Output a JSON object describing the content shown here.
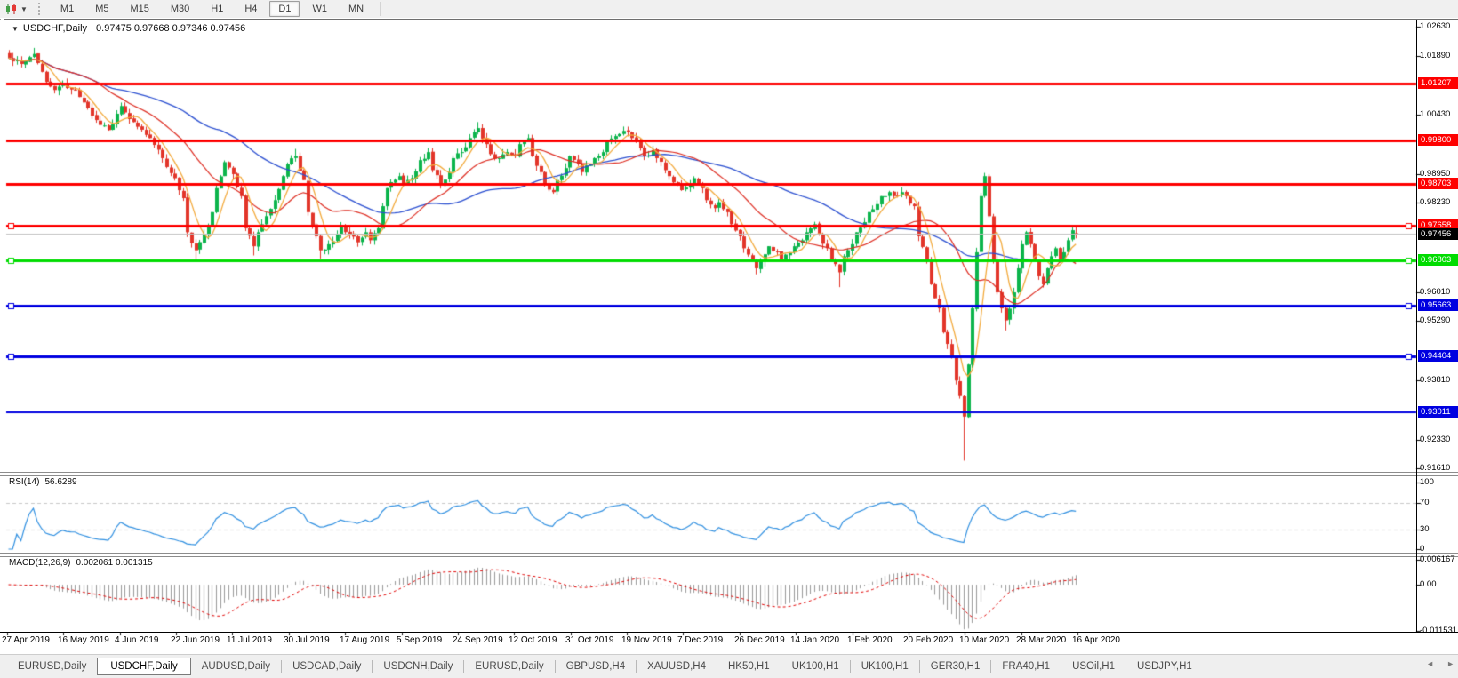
{
  "toolbar": {
    "chart_icon": "candlestick-chart-icon",
    "timeframes": [
      {
        "label": "M1",
        "active": false
      },
      {
        "label": "M5",
        "active": false
      },
      {
        "label": "M15",
        "active": false
      },
      {
        "label": "M30",
        "active": false
      },
      {
        "label": "H1",
        "active": false
      },
      {
        "label": "H4",
        "active": false
      },
      {
        "label": "D1",
        "active": true
      },
      {
        "label": "W1",
        "active": false
      },
      {
        "label": "MN",
        "active": false
      }
    ]
  },
  "chart": {
    "title_symbol": "USDCHF,Daily",
    "title_quote": "0.97475 0.97668 0.97346 0.97456"
  },
  "rsi": {
    "label": "RSI(14)",
    "value": "56.6289",
    "axis": [
      "100",
      "70",
      "30",
      "0"
    ],
    "levels": [
      70,
      30
    ]
  },
  "macd": {
    "label": "MACD(12,26,9)",
    "values": "0.002061 0.001315",
    "axis": [
      "0.006167",
      "0.00",
      "-0.011531"
    ]
  },
  "tabs": [
    {
      "label": "EURUSD,Daily",
      "active": false
    },
    {
      "label": "USDCHF,Daily",
      "active": true
    },
    {
      "label": "AUDUSD,Daily",
      "active": false
    },
    {
      "label": "USDCAD,Daily",
      "active": false
    },
    {
      "label": "USDCNH,Daily",
      "active": false
    },
    {
      "label": "EURUSD,Daily",
      "active": false
    },
    {
      "label": "GBPUSD,H4",
      "active": false
    },
    {
      "label": "XAUUSD,H4",
      "active": false
    },
    {
      "label": "HK50,H1",
      "active": false
    },
    {
      "label": "UK100,H1",
      "active": false
    },
    {
      "label": "UK100,H1",
      "active": false
    },
    {
      "label": "GER30,H1",
      "active": false
    },
    {
      "label": "FRA40,H1",
      "active": false
    },
    {
      "label": "USOil,H1",
      "active": false
    },
    {
      "label": "USDJPY,H1",
      "active": false
    }
  ],
  "tab_arrows": {
    "left": "◄",
    "right": "►"
  },
  "colors": {
    "bull": "#0cb44c",
    "bear": "#e2352a",
    "ma_fast": "#f2a93b",
    "ma_mid": "#dd2b20",
    "ma_slow": "#2b4fd0",
    "sr_red": "#fe0000",
    "sr_green": "#00dc00",
    "sr_blue": "#0000e0",
    "current_line": "#c0c0c0",
    "current_tag_bg": "#000000",
    "rsi_line": "#2f8fe0",
    "rsi_level": "#c8c8c8",
    "macd_hist": "#9a9a9a",
    "macd_signal": "#e00000"
  },
  "chart_data": {
    "type": "candlestick",
    "symbol": "USDCHF",
    "timeframe": "Daily",
    "last_bar_ohlc": {
      "open": 0.97475,
      "high": 0.97668,
      "low": 0.97346,
      "close": 0.97456
    },
    "n_candles": 258,
    "visible_price_range": [
      0.9161,
      1.0263
    ],
    "price_axis_ticks": [
      "1.02630",
      "1.01890",
      "1.00430",
      "0.98950",
      "0.98230",
      "0.96010",
      "0.95290",
      "0.93810",
      "0.92330",
      "0.91610"
    ],
    "dates": [
      "27 Apr 2019",
      "16 May 2019",
      "4 Jun 2019",
      "22 Jun 2019",
      "11 Jul 2019",
      "30 Jul 2019",
      "17 Aug 2019",
      "5 Sep 2019",
      "24 Sep 2019",
      "12 Oct 2019",
      "31 Oct 2019",
      "19 Nov 2019",
      "7 Dec 2019",
      "26 Dec 2019",
      "14 Jan 2020",
      "1 Feb 2020",
      "20 Feb 2020",
      "10 Mar 2020",
      "28 Mar 2020",
      "16 Apr 2020"
    ],
    "sr_lines": [
      {
        "label": "1.01207",
        "price": 1.01207,
        "color": "red",
        "width": 3,
        "handles": false
      },
      {
        "label": "0.99800",
        "price": 0.998,
        "color": "red",
        "width": 3,
        "handles": false
      },
      {
        "label": "0.98703",
        "price": 0.98703,
        "color": "red",
        "width": 3,
        "handles": false
      },
      {
        "label": "0.97658",
        "price": 0.97658,
        "color": "red",
        "width": 3,
        "handles": true
      },
      {
        "label": "0.96803",
        "price": 0.96803,
        "color": "green",
        "width": 3,
        "handles": true
      },
      {
        "label": "0.95663",
        "price": 0.95663,
        "color": "blue",
        "width": 3,
        "handles": true
      },
      {
        "label": "0.94404",
        "price": 0.94404,
        "color": "blue",
        "width": 3,
        "handles": true
      },
      {
        "label": "0.93011",
        "price": 0.93011,
        "color": "blue",
        "width": 2,
        "handles": false
      }
    ],
    "current_price": {
      "label": "0.97456",
      "price": 0.97456
    },
    "anchors_close": [
      [
        0,
        1.0185
      ],
      [
        3,
        1.017
      ],
      [
        6,
        1.0195
      ],
      [
        9,
        1.0125
      ],
      [
        11,
        1.0105
      ],
      [
        13,
        1.012
      ],
      [
        16,
        1.0105
      ],
      [
        19,
        1.006
      ],
      [
        21,
        1.003
      ],
      [
        24,
        1.0005
      ],
      [
        27,
        1.0065
      ],
      [
        30,
        1.0025
      ],
      [
        34,
        0.9985
      ],
      [
        37,
        0.9935
      ],
      [
        40,
        0.9885
      ],
      [
        42,
        0.9835
      ],
      [
        43,
        0.975
      ],
      [
        45,
        0.9705
      ],
      [
        47,
        0.9745
      ],
      [
        49,
        0.98
      ],
      [
        50,
        0.986
      ],
      [
        52,
        0.9925
      ],
      [
        54,
        0.9895
      ],
      [
        56,
        0.984
      ],
      [
        57,
        0.976
      ],
      [
        59,
        0.9715
      ],
      [
        60,
        0.975
      ],
      [
        62,
        0.979
      ],
      [
        64,
        0.983
      ],
      [
        66,
        0.989
      ],
      [
        67,
        0.992
      ],
      [
        69,
        0.994
      ],
      [
        71,
        0.988
      ],
      [
        72,
        0.98
      ],
      [
        74,
        0.974
      ],
      [
        75,
        0.9705
      ],
      [
        77,
        0.972
      ],
      [
        79,
        0.9745
      ],
      [
        80,
        0.9765
      ],
      [
        82,
        0.9745
      ],
      [
        84,
        0.9725
      ],
      [
        86,
        0.975
      ],
      [
        87,
        0.973
      ],
      [
        89,
        0.976
      ],
      [
        91,
        0.986
      ],
      [
        92,
        0.9875
      ],
      [
        94,
        0.989
      ],
      [
        95,
        0.987
      ],
      [
        97,
        0.9885
      ],
      [
        99,
        0.993
      ],
      [
        101,
        0.995
      ],
      [
        102,
        0.9905
      ],
      [
        104,
        0.987
      ],
      [
        106,
        0.99
      ],
      [
        107,
        0.9935
      ],
      [
        109,
        0.995
      ],
      [
        111,
        0.9985
      ],
      [
        112,
        1.0
      ],
      [
        113,
        1.001
      ],
      [
        115,
        0.997
      ],
      [
        116,
        0.9945
      ],
      [
        118,
        0.9935
      ],
      [
        120,
        0.995
      ],
      [
        122,
        0.994
      ],
      [
        123,
        0.997
      ],
      [
        125,
        0.9985
      ],
      [
        126,
        0.994
      ],
      [
        128,
        0.99
      ],
      [
        129,
        0.987
      ],
      [
        131,
        0.985
      ],
      [
        132,
        0.988
      ],
      [
        134,
        0.991
      ],
      [
        135,
        0.994
      ],
      [
        137,
        0.992
      ],
      [
        138,
        0.99
      ],
      [
        140,
        0.992
      ],
      [
        141,
        0.9935
      ],
      [
        143,
        0.995
      ],
      [
        144,
        0.9975
      ],
      [
        146,
        0.999
      ],
      [
        147,
        0.9995
      ],
      [
        149,
        1.0
      ],
      [
        150,
        0.9985
      ],
      [
        152,
        0.996
      ],
      [
        153,
        0.994
      ],
      [
        155,
        0.9955
      ],
      [
        156,
        0.9935
      ],
      [
        158,
        0.9905
      ],
      [
        159,
        0.989
      ],
      [
        161,
        0.987
      ],
      [
        162,
        0.9855
      ],
      [
        164,
        0.987
      ],
      [
        165,
        0.9885
      ],
      [
        167,
        0.986
      ],
      [
        168,
        0.983
      ],
      [
        170,
        0.981
      ],
      [
        171,
        0.9825
      ],
      [
        173,
        0.98
      ],
      [
        174,
        0.977
      ],
      [
        176,
        0.974
      ],
      [
        177,
        0.971
      ],
      [
        179,
        0.968
      ],
      [
        180,
        0.966
      ],
      [
        182,
        0.9695
      ],
      [
        183,
        0.9715
      ],
      [
        185,
        0.97
      ],
      [
        186,
        0.968
      ],
      [
        188,
        0.97
      ],
      [
        189,
        0.9715
      ],
      [
        191,
        0.973
      ],
      [
        192,
        0.975
      ],
      [
        194,
        0.977
      ],
      [
        195,
        0.9745
      ],
      [
        197,
        0.971
      ],
      [
        198,
        0.968
      ],
      [
        200,
        0.965
      ],
      [
        201,
        0.969
      ],
      [
        203,
        0.972
      ],
      [
        204,
        0.975
      ],
      [
        206,
        0.9775
      ],
      [
        207,
        0.98
      ],
      [
        209,
        0.982
      ],
      [
        210,
        0.984
      ],
      [
        212,
        0.985
      ],
      [
        213,
        0.984
      ],
      [
        215,
        0.985
      ],
      [
        216,
        0.984
      ],
      [
        218,
        0.9815
      ],
      [
        219,
        0.974
      ],
      [
        221,
        0.968
      ],
      [
        222,
        0.962
      ],
      [
        224,
        0.956
      ],
      [
        225,
        0.95
      ],
      [
        227,
        0.944
      ],
      [
        228,
        0.938
      ],
      [
        230,
        0.929
      ],
      [
        231,
        0.942
      ],
      [
        232,
        0.956
      ],
      [
        233,
        0.97
      ],
      [
        234,
        0.984
      ],
      [
        235,
        0.989
      ],
      [
        236,
        0.979
      ],
      [
        237,
        0.968
      ],
      [
        238,
        0.96
      ],
      [
        239,
        0.956
      ],
      [
        240,
        0.953
      ],
      [
        242,
        0.96
      ],
      [
        243,
        0.966
      ],
      [
        244,
        0.972
      ],
      [
        245,
        0.975
      ],
      [
        246,
        0.972
      ],
      [
        247,
        0.968
      ],
      [
        248,
        0.964
      ],
      [
        249,
        0.962
      ],
      [
        250,
        0.966
      ],
      [
        251,
        0.969
      ],
      [
        252,
        0.971
      ],
      [
        253,
        0.968
      ],
      [
        254,
        0.97
      ],
      [
        255,
        0.973
      ],
      [
        256,
        0.9755
      ],
      [
        257,
        0.97456
      ]
    ],
    "wick_overrides": {
      "6": {
        "high": 1.021
      },
      "45": {
        "low": 0.968
      },
      "59": {
        "low": 0.9692
      },
      "69": {
        "high": 0.9958
      },
      "75": {
        "low": 0.9684
      },
      "113": {
        "high": 1.0025
      },
      "180": {
        "low": 0.9645
      },
      "200": {
        "low": 0.9613
      },
      "230": {
        "low": 0.918
      },
      "240": {
        "low": 0.9505
      },
      "257": {
        "open": 0.97475,
        "high": 0.97668,
        "low": 0.97346,
        "close": 0.97456
      }
    },
    "indicators": {
      "moving_averages": [
        {
          "name": "fast",
          "period": 6
        },
        {
          "name": "mid",
          "period": 22
        },
        {
          "name": "slow",
          "period": 52
        }
      ],
      "rsi": {
        "period": 14,
        "last": 56.6289
      },
      "macd": {
        "fast": 12,
        "slow": 26,
        "signal": 9,
        "last_main": 0.002061,
        "last_signal": 0.001315
      }
    }
  }
}
